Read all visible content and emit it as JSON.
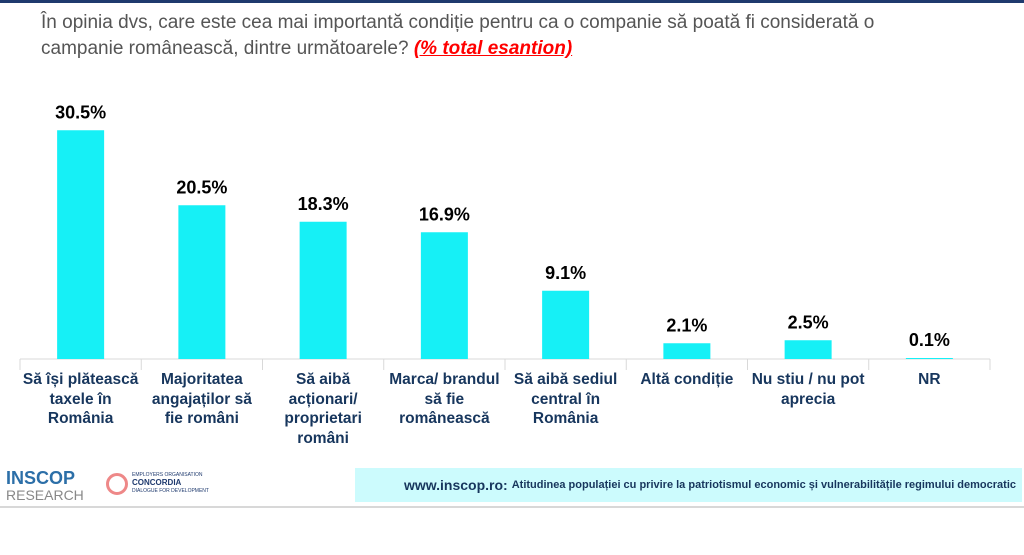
{
  "question": {
    "text": "În opinia dvs, care este cea mai importantă condiție pentru ca o companie să poată fi considerată o campanie românească, dintre următoarele?",
    "highlight": "(% total esantion)"
  },
  "chart_data": {
    "type": "bar",
    "title": "În opinia dvs, care este cea mai importantă condiție pentru ca o companie să poată fi considerată o campanie românească, dintre următoarele? (% total esantion)",
    "categories": [
      "Să își plătească taxele în România",
      "Majoritatea angajaților să fie români",
      "Să aibă acționari/ proprietari români",
      "Marca/ brandul să fie românească",
      "Să aibă sediul central în România",
      "Altă condiție",
      "Nu stiu / nu pot aprecia",
      "NR"
    ],
    "values": [
      30.5,
      20.5,
      18.3,
      16.9,
      9.1,
      2.1,
      2.5,
      0.1
    ],
    "value_labels": [
      "30.5%",
      "20.5%",
      "18.3%",
      "16.9%",
      "9.1%",
      "2.1%",
      "2.5%",
      "0.1%"
    ],
    "ylim": [
      0,
      32
    ],
    "grid": false,
    "bar_color": "#16f0f6"
  },
  "footer": {
    "url": "www.inscop.ro:",
    "text": "Atitudinea populației cu privire la patriotismul economic și vulnerabilitățile regimului democratic"
  },
  "logos": {
    "inscop": "INSCOP",
    "research": "RESEARCH",
    "org": "EMPLOYERS ORGANISATION",
    "concordia": "CONCORDIA",
    "tagline": "DIALOGUE FOR DEVELOPMENT"
  }
}
